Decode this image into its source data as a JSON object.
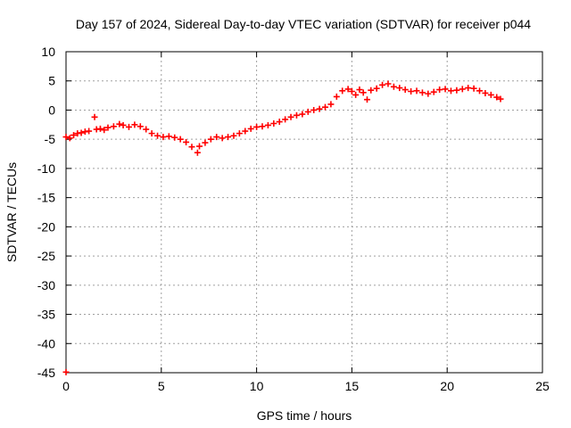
{
  "chart_data": {
    "type": "scatter",
    "title": "Day 157 of 2024, Sidereal Day-to-day VTEC variation (SDTVAR) for receiver p044",
    "xlabel": "GPS time / hours",
    "ylabel": "SDTVAR / TECUs",
    "xlim": [
      0,
      25
    ],
    "ylim": [
      -45,
      10
    ],
    "xticks": [
      0,
      5,
      10,
      15,
      20,
      25
    ],
    "yticks": [
      10,
      5,
      0,
      -5,
      -10,
      -15,
      -20,
      -25,
      -30,
      -35,
      -40,
      -45
    ],
    "grid": true,
    "marker": "+",
    "series_color": "#ff0000",
    "series": [
      {
        "name": "SDTVAR",
        "points": [
          [
            0.0,
            -44.9
          ],
          [
            0.0,
            -4.6
          ],
          [
            0.2,
            -4.8
          ],
          [
            0.4,
            -4.3
          ],
          [
            0.6,
            -4.0
          ],
          [
            0.8,
            -3.9
          ],
          [
            1.0,
            -3.7
          ],
          [
            1.2,
            -3.6
          ],
          [
            1.5,
            -1.2
          ],
          [
            1.6,
            -3.3
          ],
          [
            1.8,
            -3.2
          ],
          [
            2.0,
            -3.4
          ],
          [
            2.2,
            -3.0
          ],
          [
            2.5,
            -2.8
          ],
          [
            2.8,
            -2.4
          ],
          [
            3.0,
            -2.6
          ],
          [
            3.3,
            -2.9
          ],
          [
            3.6,
            -2.5
          ],
          [
            3.9,
            -2.8
          ],
          [
            4.2,
            -3.3
          ],
          [
            4.5,
            -4.0
          ],
          [
            4.8,
            -4.4
          ],
          [
            5.1,
            -4.6
          ],
          [
            5.4,
            -4.5
          ],
          [
            5.7,
            -4.7
          ],
          [
            6.0,
            -5.0
          ],
          [
            6.3,
            -5.5
          ],
          [
            6.6,
            -6.3
          ],
          [
            6.9,
            -7.3
          ],
          [
            7.0,
            -6.2
          ],
          [
            7.3,
            -5.6
          ],
          [
            7.6,
            -5.0
          ],
          [
            7.9,
            -4.6
          ],
          [
            8.2,
            -4.8
          ],
          [
            8.5,
            -4.6
          ],
          [
            8.8,
            -4.4
          ],
          [
            9.1,
            -4.0
          ],
          [
            9.4,
            -3.6
          ],
          [
            9.7,
            -3.2
          ],
          [
            10.0,
            -2.9
          ],
          [
            10.3,
            -2.8
          ],
          [
            10.6,
            -2.6
          ],
          [
            10.9,
            -2.3
          ],
          [
            11.2,
            -2.0
          ],
          [
            11.5,
            -1.6
          ],
          [
            11.8,
            -1.2
          ],
          [
            12.1,
            -0.9
          ],
          [
            12.4,
            -0.7
          ],
          [
            12.7,
            -0.3
          ],
          [
            13.0,
            0.0
          ],
          [
            13.3,
            0.2
          ],
          [
            13.6,
            0.5
          ],
          [
            13.9,
            1.0
          ],
          [
            14.2,
            2.3
          ],
          [
            14.5,
            3.3
          ],
          [
            14.8,
            3.6
          ],
          [
            15.0,
            3.2
          ],
          [
            15.2,
            2.6
          ],
          [
            15.4,
            3.5
          ],
          [
            15.6,
            3.0
          ],
          [
            15.8,
            1.8
          ],
          [
            16.0,
            3.4
          ],
          [
            16.3,
            3.7
          ],
          [
            16.6,
            4.3
          ],
          [
            16.9,
            4.5
          ],
          [
            17.2,
            4.0
          ],
          [
            17.5,
            3.8
          ],
          [
            17.8,
            3.5
          ],
          [
            18.1,
            3.2
          ],
          [
            18.4,
            3.3
          ],
          [
            18.7,
            3.0
          ],
          [
            19.0,
            2.8
          ],
          [
            19.3,
            3.1
          ],
          [
            19.6,
            3.5
          ],
          [
            19.9,
            3.6
          ],
          [
            20.2,
            3.3
          ],
          [
            20.5,
            3.4
          ],
          [
            20.8,
            3.6
          ],
          [
            21.1,
            3.8
          ],
          [
            21.4,
            3.7
          ],
          [
            21.7,
            3.3
          ],
          [
            22.0,
            2.9
          ],
          [
            22.3,
            2.6
          ],
          [
            22.6,
            2.2
          ],
          [
            22.8,
            1.9
          ]
        ]
      }
    ]
  }
}
